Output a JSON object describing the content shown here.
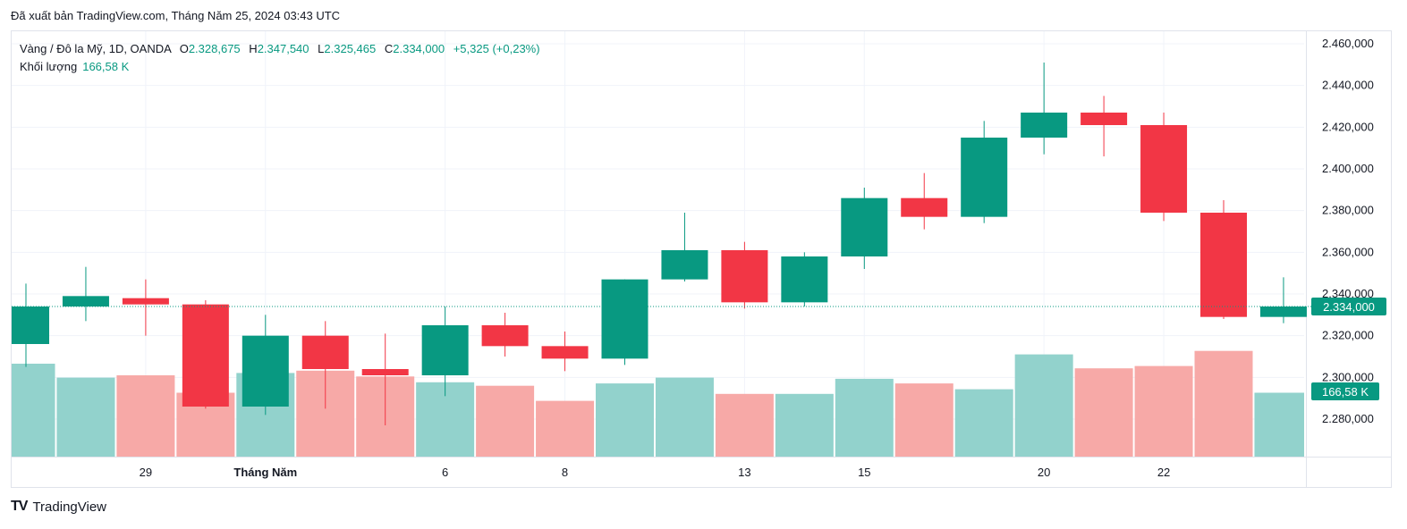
{
  "published": "Đã xuất bản TradingView.com, Tháng Năm 25, 2024 03:43 UTC",
  "legend": {
    "symbol": "Vàng / Đô la Mỹ, 1D, OANDA",
    "o_key": "O",
    "o_val": "2.328,675",
    "h_key": "H",
    "h_val": "2.347,540",
    "l_key": "L",
    "l_val": "2.325,465",
    "c_key": "C",
    "c_val": "2.334,000",
    "change": "+5,325 (+0,23%)",
    "volume_label": "Khối lượng",
    "volume_value": "166,58 K"
  },
  "footer": {
    "logo": "TV",
    "brand": "TradingView"
  },
  "colors": {
    "up": "#089981",
    "down": "#f23645",
    "vol_up": "#92d2cc",
    "vol_down": "#f7a9a7",
    "grid": "#f0f3fa",
    "axis_text": "#131722"
  },
  "chart_data": {
    "type": "candlestick",
    "title": "Vàng / Đô la Mỹ, 1D, OANDA",
    "ylim": [
      2262,
      2466
    ],
    "y_ticks": [
      2280,
      2300,
      2320,
      2340,
      2360,
      2380,
      2400,
      2420,
      2440,
      2460
    ],
    "y_tick_labels": [
      "2.280,000",
      "2.300,000",
      "2.320,000",
      "2.340,000",
      "2.360,000",
      "2.380,000",
      "2.400,000",
      "2.420,000",
      "2.440,000",
      "2.460,000"
    ],
    "x_labels": [
      {
        "index": 2,
        "text": "29"
      },
      {
        "index": 4,
        "text": "Tháng Năm"
      },
      {
        "index": 7,
        "text": "6"
      },
      {
        "index": 9,
        "text": "8"
      },
      {
        "index": 12,
        "text": "13"
      },
      {
        "index": 14,
        "text": "15"
      },
      {
        "index": 17,
        "text": "20"
      },
      {
        "index": 19,
        "text": "22"
      }
    ],
    "candles": [
      {
        "o": 2316,
        "h": 2345,
        "l": 2305,
        "c": 2334
      },
      {
        "o": 2334,
        "h": 2353,
        "l": 2327,
        "c": 2339
      },
      {
        "o": 2338,
        "h": 2347,
        "l": 2320,
        "c": 2335
      },
      {
        "o": 2335,
        "h": 2337,
        "l": 2285,
        "c": 2286
      },
      {
        "o": 2286,
        "h": 2330,
        "l": 2282,
        "c": 2320
      },
      {
        "o": 2320,
        "h": 2327,
        "l": 2285,
        "c": 2304
      },
      {
        "o": 2304,
        "h": 2321,
        "l": 2277,
        "c": 2301
      },
      {
        "o": 2301,
        "h": 2334,
        "l": 2291,
        "c": 2325
      },
      {
        "o": 2325,
        "h": 2331,
        "l": 2310,
        "c": 2315
      },
      {
        "o": 2315,
        "h": 2322,
        "l": 2303,
        "c": 2309
      },
      {
        "o": 2309,
        "h": 2347,
        "l": 2306,
        "c": 2347
      },
      {
        "o": 2347,
        "h": 2379,
        "l": 2346,
        "c": 2361
      },
      {
        "o": 2361,
        "h": 2365,
        "l": 2333,
        "c": 2336
      },
      {
        "o": 2336,
        "h": 2360,
        "l": 2334,
        "c": 2358
      },
      {
        "o": 2358,
        "h": 2391,
        "l": 2352,
        "c": 2386
      },
      {
        "o": 2386,
        "h": 2398,
        "l": 2371,
        "c": 2377
      },
      {
        "o": 2377,
        "h": 2423,
        "l": 2374,
        "c": 2415
      },
      {
        "o": 2415,
        "h": 2451,
        "l": 2407,
        "c": 2427
      },
      {
        "o": 2427,
        "h": 2435,
        "l": 2406,
        "c": 2421
      },
      {
        "o": 2421,
        "h": 2427,
        "l": 2375,
        "c": 2379
      },
      {
        "o": 2379,
        "h": 2385,
        "l": 2328,
        "c": 2329
      },
      {
        "o": 2329,
        "h": 2348,
        "l": 2326,
        "c": 2334
      }
    ],
    "volume_relative": [
      0.8,
      0.68,
      0.7,
      0.55,
      0.72,
      0.74,
      0.69,
      0.64,
      0.61,
      0.48,
      0.63,
      0.68,
      0.54,
      0.54,
      0.67,
      0.63,
      0.58,
      0.88,
      0.76,
      0.78,
      0.91,
      0.55
    ],
    "last_price_label": "2.334,000",
    "last_price": 2334,
    "last_volume_label": "166,58 K"
  }
}
